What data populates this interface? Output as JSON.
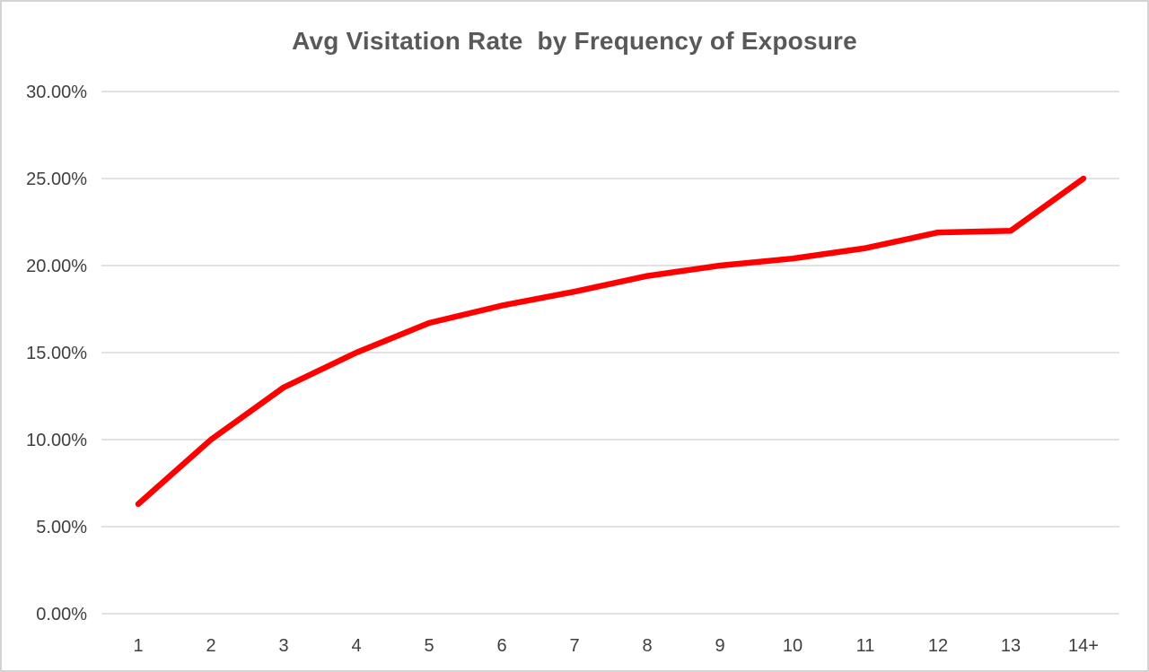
{
  "chart_data": {
    "type": "line",
    "title": "Avg Visitation Rate  by Frequency of Exposure",
    "categories": [
      "1",
      "2",
      "3",
      "4",
      "5",
      "6",
      "7",
      "8",
      "9",
      "10",
      "11",
      "12",
      "13",
      "14+"
    ],
    "series": [
      {
        "name": "Avg Visitation Rate",
        "values": [
          6.3,
          10.0,
          13.0,
          15.0,
          16.7,
          17.7,
          18.5,
          19.4,
          20.0,
          20.4,
          21.0,
          21.9,
          22.0,
          25.0
        ]
      }
    ],
    "xlabel": "",
    "ylabel": "",
    "y_axis": {
      "min": 0,
      "max": 30,
      "step": 5,
      "tick_labels": [
        "0.00%",
        "5.00%",
        "10.00%",
        "15.00%",
        "20.00%",
        "25.00%",
        "30.00%"
      ]
    },
    "x_axis": {
      "tick_labels": [
        "1",
        "2",
        "3",
        "4",
        "5",
        "6",
        "7",
        "8",
        "9",
        "10",
        "11",
        "12",
        "13",
        "14+"
      ]
    },
    "grid": "horizontal",
    "legend": "none",
    "colors": {
      "line": "#ff0000",
      "title": "#595959",
      "tick_label": "#3f3f3f",
      "gridline": "#d9d9d9",
      "axis_line": "#d9d9d9",
      "background": "#ffffff",
      "frame_border": "#d4d4d4"
    }
  }
}
